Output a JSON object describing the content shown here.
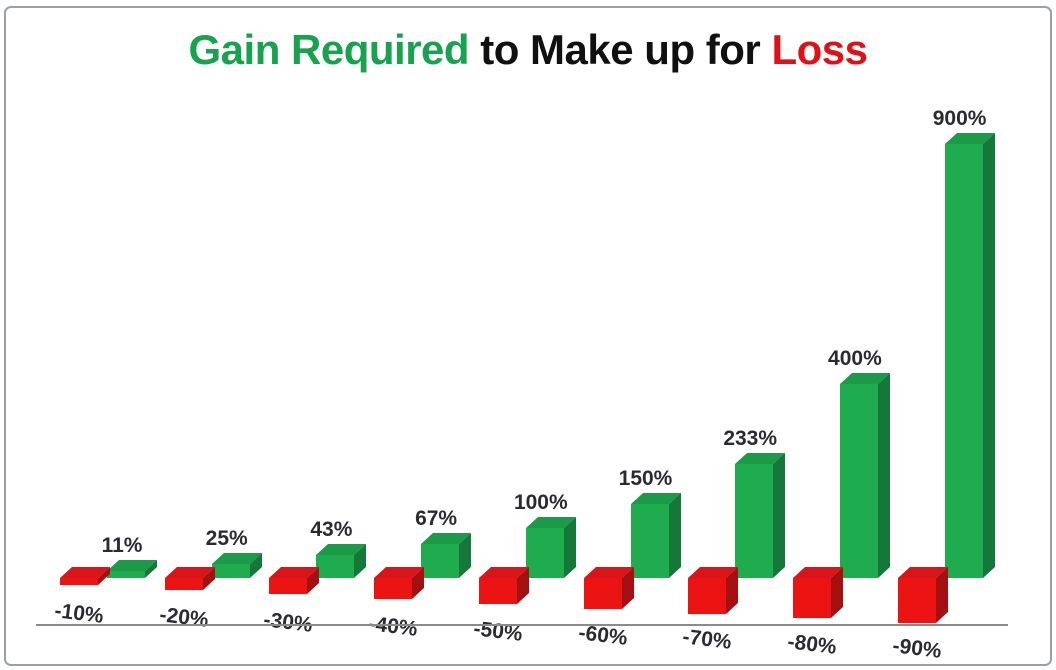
{
  "title": {
    "gain_part": "Gain Required",
    "middle_part": "to Make up for",
    "loss_part": "Loss"
  },
  "chart_data": {
    "type": "bar",
    "style": "3d-clustered-column",
    "title": "Gain Required to Make up for Loss",
    "categories": [
      "-10%",
      "-20%",
      "-30%",
      "-40%",
      "-50%",
      "-60%",
      "-70%",
      "-80%",
      "-90%"
    ],
    "series": [
      {
        "name": "Loss",
        "values": [
          -10,
          -20,
          -30,
          -40,
          -50,
          -60,
          -70,
          -80,
          -90
        ],
        "color": "#EC1313"
      },
      {
        "name": "Gain Required",
        "values": [
          11,
          25,
          43,
          67,
          100,
          150,
          233,
          400,
          900
        ],
        "color": "#1FAC4F"
      }
    ],
    "value_labels": [
      "11%",
      "25%",
      "43%",
      "67%",
      "100%",
      "150%",
      "233%",
      "400%",
      "900%"
    ],
    "xlabel": "",
    "ylabel": "",
    "ylim": [
      -90,
      900
    ],
    "grid": false,
    "legend": false,
    "baseline": 0
  },
  "colors": {
    "gain_front": "#1FAC4F",
    "gain_top": "#1B9A48",
    "gain_side": "#15783A",
    "loss_front": "#EC1313",
    "loss_top": "#D91519",
    "loss_side": "#A40F12",
    "title_gain": "#17A24D",
    "title_text": "#101010",
    "title_loss": "#DE1118",
    "label_text": "#2A2A31",
    "axis_line": "#8A8A8A",
    "border": "#9AA0A4",
    "background": "#FFFFFF"
  }
}
